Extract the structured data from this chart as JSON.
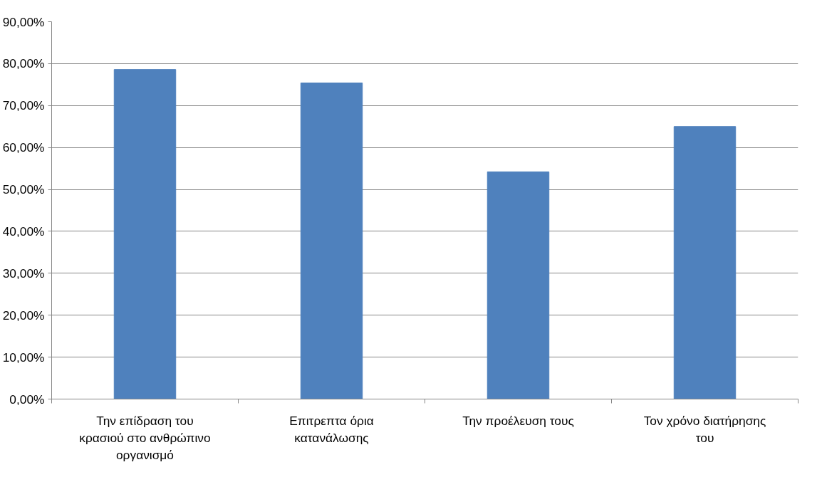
{
  "chart_data": {
    "type": "bar",
    "categories": [
      "Την επίδραση του κρασιού στο ανθρώπινο οργανισμό",
      "Επιτρεπτα όρια κατανάλωσης",
      "Την προέλευση τους",
      "Τον χρόνο διατήρησης του"
    ],
    "values": [
      78.6,
      75.4,
      54.2,
      65.0
    ],
    "color": "#4f81bd",
    "ylim": [
      0,
      90
    ],
    "yticks": [
      {
        "value": 0,
        "label": "0,00%"
      },
      {
        "value": 10,
        "label": "10,00%"
      },
      {
        "value": 20,
        "label": "20,00%"
      },
      {
        "value": 30,
        "label": "30,00%"
      },
      {
        "value": 40,
        "label": "40,00%"
      },
      {
        "value": 50,
        "label": "50,00%"
      },
      {
        "value": 60,
        "label": "60,00%"
      },
      {
        "value": 70,
        "label": "70,00%"
      },
      {
        "value": 80,
        "label": "80,00%"
      },
      {
        "value": 90,
        "label": "90,00%"
      }
    ],
    "grid": "y"
  }
}
